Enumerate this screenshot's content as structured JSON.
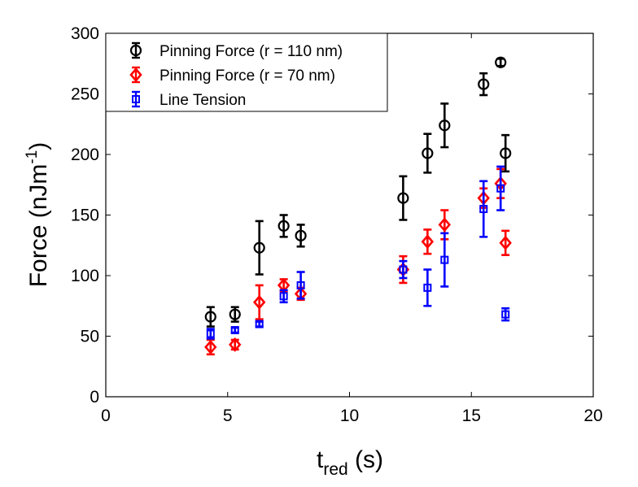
{
  "chart_data": {
    "type": "scatter",
    "title": "",
    "xlabel_main": "t",
    "xlabel_sub": "red",
    "xlabel_unit": " (s)",
    "ylabel_main": "Force (nJm",
    "ylabel_sup": "-1",
    "ylabel_close": ")",
    "xlim": [
      0,
      20
    ],
    "ylim": [
      0,
      300
    ],
    "xticks": [
      "0",
      "5",
      "10",
      "15",
      "20"
    ],
    "yticks": [
      "0",
      "50",
      "100",
      "150",
      "200",
      "250",
      "300"
    ],
    "grid": false,
    "legend_position": "top-left",
    "series": [
      {
        "name": "Pinning Force (r = 110 nm)",
        "color": "#000000",
        "marker": "circle",
        "points": [
          {
            "x": 4.3,
            "y": 66,
            "err": 8
          },
          {
            "x": 5.3,
            "y": 68,
            "err": 6
          },
          {
            "x": 6.3,
            "y": 123,
            "err": 22
          },
          {
            "x": 7.3,
            "y": 141,
            "err": 9
          },
          {
            "x": 8.0,
            "y": 133,
            "err": 9
          },
          {
            "x": 12.2,
            "y": 164,
            "err": 18
          },
          {
            "x": 13.2,
            "y": 201,
            "err": 16
          },
          {
            "x": 13.9,
            "y": 224,
            "err": 18
          },
          {
            "x": 15.5,
            "y": 258,
            "err": 9
          },
          {
            "x": 16.2,
            "y": 276,
            "err": 3
          },
          {
            "x": 16.4,
            "y": 201,
            "err": 15
          }
        ]
      },
      {
        "name": "Pinning Force (r = 70 nm)",
        "color": "#ff0000",
        "marker": "diamond",
        "points": [
          {
            "x": 4.3,
            "y": 41,
            "err": 6
          },
          {
            "x": 5.3,
            "y": 43,
            "err": 4
          },
          {
            "x": 6.3,
            "y": 78,
            "err": 14
          },
          {
            "x": 7.3,
            "y": 92,
            "err": 5
          },
          {
            "x": 8.0,
            "y": 85,
            "err": 5
          },
          {
            "x": 12.2,
            "y": 105,
            "err": 11
          },
          {
            "x": 13.2,
            "y": 128,
            "err": 10
          },
          {
            "x": 13.9,
            "y": 142,
            "err": 12
          },
          {
            "x": 15.5,
            "y": 164,
            "err": 8
          },
          {
            "x": 16.2,
            "y": 176,
            "err": 12
          },
          {
            "x": 16.4,
            "y": 127,
            "err": 10
          }
        ]
      },
      {
        "name": "Line Tension",
        "color": "#0000ff",
        "marker": "square",
        "points": [
          {
            "x": 4.3,
            "y": 52,
            "err": 4
          },
          {
            "x": 5.3,
            "y": 55,
            "err": 2
          },
          {
            "x": 6.3,
            "y": 60,
            "err": 2
          },
          {
            "x": 7.3,
            "y": 83,
            "err": 5
          },
          {
            "x": 8.0,
            "y": 92,
            "err": 11
          },
          {
            "x": 12.2,
            "y": 105,
            "err": 7
          },
          {
            "x": 13.2,
            "y": 90,
            "err": 15
          },
          {
            "x": 13.9,
            "y": 113,
            "err": 22
          },
          {
            "x": 15.5,
            "y": 155,
            "err": 23
          },
          {
            "x": 16.2,
            "y": 172,
            "err": 18
          },
          {
            "x": 16.4,
            "y": 68,
            "err": 5
          }
        ]
      }
    ]
  }
}
